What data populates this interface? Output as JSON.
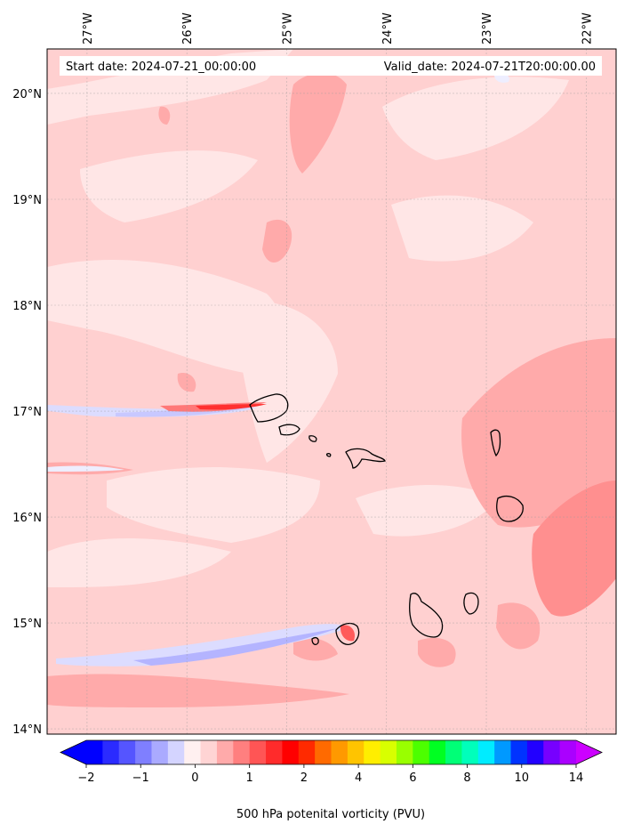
{
  "map": {
    "start_label": "Start date: 2024-07-21_00:00:00",
    "valid_label": "Valid_date: 2024-07-21T20:00:00.00",
    "lon_ticks": [
      "27°W",
      "26°W",
      "25°W",
      "24°W",
      "23°W",
      "22°W"
    ],
    "lat_ticks": [
      "20°N",
      "19°N",
      "18°N",
      "17°N",
      "16°N",
      "15°N",
      "14°N"
    ],
    "extent": {
      "lon_min": -27.4,
      "lon_max": -21.7,
      "lat_min": 13.95,
      "lat_max": 20.42
    },
    "background_color": "#ffd0d0"
  },
  "colorbar": {
    "label": "500 hPa potenital vorticity (PVU)",
    "tick_labels": [
      "−2",
      "−1",
      "0",
      "1",
      "2",
      "4",
      "6",
      "8",
      "10",
      "14"
    ],
    "colors": [
      "#0000ff",
      "#2b2bff",
      "#5555ff",
      "#7f7fff",
      "#aaaaff",
      "#d4d4ff",
      "#fff0f0",
      "#ffd4d4",
      "#ffaaaa",
      "#ff7f7f",
      "#ff5555",
      "#ff2b2b",
      "#ff0000",
      "#ff2a00",
      "#ff6a00",
      "#ff9900",
      "#ffc400",
      "#ffee00",
      "#d8ff00",
      "#99ff00",
      "#4cff00",
      "#00ff22",
      "#00ff77",
      "#00ffbb",
      "#00ecff",
      "#0099ff",
      "#0033ff",
      "#2200ff",
      "#7700ff",
      "#aa00ff"
    ],
    "under_color": "#0000ff",
    "over_color": "#cc00ff"
  }
}
